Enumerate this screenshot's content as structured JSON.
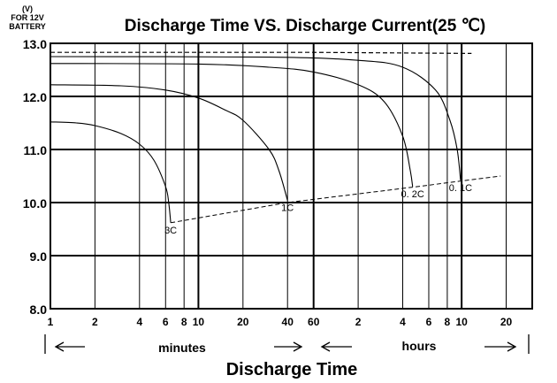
{
  "chart_data": {
    "type": "line",
    "title": "Discharge Time VS. Discharge Current(25 ℃)",
    "ylabel_lines": [
      "(V)",
      "FOR 12V",
      "BATTERY"
    ],
    "xlabel": "Discharge Time",
    "ylim": [
      8.0,
      13.0
    ],
    "yticks": [
      "8.0",
      "9.0",
      "10.0",
      "11.0",
      "12.0",
      "13.0"
    ],
    "x_scale": "log",
    "xlim_minutes": [
      1,
      1800
    ],
    "xticks": [
      {
        "label": "1",
        "minutes": 1
      },
      {
        "label": "2",
        "minutes": 2
      },
      {
        "label": "4",
        "minutes": 4
      },
      {
        "label": "6",
        "minutes": 6
      },
      {
        "label": "8",
        "minutes": 8
      },
      {
        "label": "10",
        "minutes": 10
      },
      {
        "label": "20",
        "minutes": 20
      },
      {
        "label": "40",
        "minutes": 40
      },
      {
        "label": "60",
        "minutes": 60
      },
      {
        "label": "2",
        "minutes": 120
      },
      {
        "label": "4",
        "minutes": 240
      },
      {
        "label": "6",
        "minutes": 360
      },
      {
        "label": "8",
        "minutes": 480
      },
      {
        "label": "10",
        "minutes": 600
      },
      {
        "label": "20",
        "minutes": 1200
      }
    ],
    "unit_labels": {
      "minutes": "minutes",
      "hours": "hours"
    },
    "grid": true,
    "series": [
      {
        "name": "3C",
        "points": [
          [
            1,
            11.52
          ],
          [
            1.5,
            11.5
          ],
          [
            2,
            11.45
          ],
          [
            3,
            11.3
          ],
          [
            4,
            11.1
          ],
          [
            5,
            10.8
          ],
          [
            6,
            10.3
          ],
          [
            6.3,
            10.0
          ],
          [
            6.5,
            9.62
          ]
        ]
      },
      {
        "name": "1C",
        "points": [
          [
            1,
            12.22
          ],
          [
            3,
            12.2
          ],
          [
            6,
            12.12
          ],
          [
            10,
            11.97
          ],
          [
            15,
            11.75
          ],
          [
            20,
            11.55
          ],
          [
            30,
            11.0
          ],
          [
            35,
            10.6
          ],
          [
            40,
            10.04
          ]
        ]
      },
      {
        "name": "0. 2C",
        "points": [
          [
            1,
            12.62
          ],
          [
            10,
            12.61
          ],
          [
            30,
            12.55
          ],
          [
            60,
            12.46
          ],
          [
            120,
            12.22
          ],
          [
            180,
            11.9
          ],
          [
            240,
            11.25
          ],
          [
            270,
            10.6
          ],
          [
            280,
            10.3
          ]
        ]
      },
      {
        "name": "0. 1C",
        "points": [
          [
            1,
            12.75
          ],
          [
            30,
            12.74
          ],
          [
            120,
            12.68
          ],
          [
            240,
            12.55
          ],
          [
            400,
            12.12
          ],
          [
            500,
            11.55
          ],
          [
            560,
            11.0
          ],
          [
            590,
            10.42
          ]
        ]
      }
    ],
    "initial_voltage_dashed": [
      [
        1,
        12.83
      ],
      [
        60,
        12.83
      ],
      [
        700,
        12.81
      ]
    ],
    "end_voltage_dashed": [
      [
        6.5,
        9.62
      ],
      [
        40,
        10.0
      ],
      [
        300,
        10.3
      ],
      [
        1100,
        10.5
      ]
    ]
  }
}
